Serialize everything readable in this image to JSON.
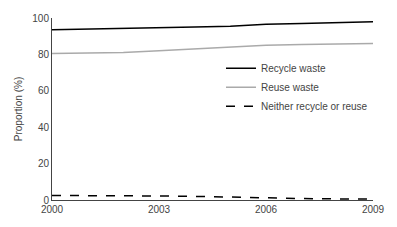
{
  "chart_data": {
    "type": "line",
    "ylabel": "Proportion (%)",
    "x": [
      2000,
      2001,
      2002,
      2003,
      2004,
      2005,
      2006,
      2007,
      2008,
      2009
    ],
    "series": [
      {
        "name": "Recycle waste",
        "color": "#000000",
        "line_style": "solid",
        "values": [
          93.5,
          93.8,
          94.0,
          94.5,
          95.0,
          95.5,
          96.5,
          97.0,
          97.5,
          98.0
        ]
      },
      {
        "name": "Reuse waste",
        "color": "#aaaaaa",
        "line_style": "solid",
        "values": [
          80.5,
          80.7,
          81.0,
          82.0,
          83.0,
          84.0,
          85.0,
          85.5,
          85.8,
          86.0
        ]
      },
      {
        "name": "Neither recycle or reuse",
        "color": "#000000",
        "line_style": "dashed",
        "values": [
          2.5,
          2.5,
          2.3,
          2.2,
          2.0,
          1.5,
          1.0,
          0.8,
          0.6,
          0.5
        ]
      }
    ],
    "xlim": [
      2000,
      2009
    ],
    "xticks": [
      2000,
      2003,
      2006,
      2009
    ],
    "ylim": [
      0,
      100
    ],
    "yticks": [
      0,
      20,
      40,
      60,
      80,
      100
    ],
    "grid": false,
    "legend": "right"
  }
}
